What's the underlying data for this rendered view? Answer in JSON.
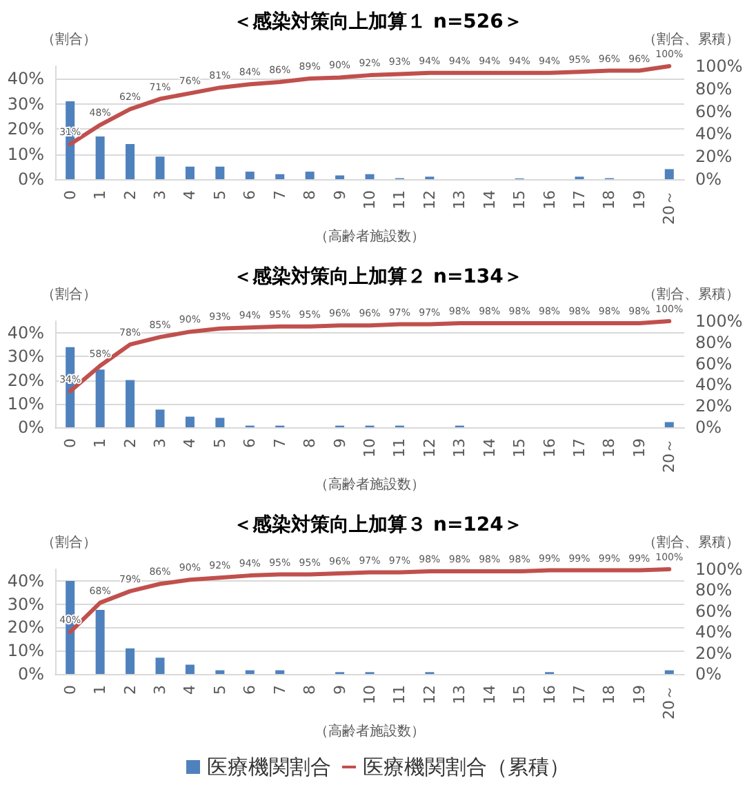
{
  "chart_data": [
    {
      "type": "bar",
      "title": "＜感染対策向上加算１ n=526＞",
      "xlabel": "（高齢者施設数）",
      "ylabel": "（割合）",
      "y2label": "（割合、累積）",
      "categories": [
        "0",
        "1",
        "2",
        "3",
        "4",
        "5",
        "6",
        "7",
        "8",
        "9",
        "10",
        "11",
        "12",
        "13",
        "14",
        "15",
        "16",
        "17",
        "18",
        "19",
        "20～"
      ],
      "series": [
        {
          "color": "#4f81bd",
          "values": [
            31,
            17,
            14,
            9,
            5,
            5,
            3,
            2,
            3,
            1.5,
            2,
            0.4,
            1,
            0,
            0,
            0.3,
            0,
            1,
            0.4,
            0,
            4
          ]
        },
        {
          "type": "line",
          "axis": "y2",
          "color": "#c0504d",
          "values": [
            31,
            48,
            62,
            71,
            76,
            81,
            84,
            86,
            89,
            90,
            92,
            93,
            94,
            94,
            94,
            94,
            94,
            95,
            96,
            96,
            100
          ],
          "value_labels": [
            "31%",
            "48%",
            "62%",
            "71%",
            "76%",
            "81%",
            "84%",
            "86%",
            "89%",
            "90%",
            "92%",
            "93%",
            "94%",
            "94%",
            "94%",
            "94%",
            "94%",
            "95%",
            "96%",
            "96%",
            "100%"
          ]
        }
      ],
      "ylim": [
        0,
        45
      ],
      "yticks": [
        {
          "value": 0,
          "label": "0%"
        },
        {
          "value": 10,
          "label": "10%"
        },
        {
          "value": 20,
          "label": "20%"
        },
        {
          "value": 30,
          "label": "30%"
        },
        {
          "value": 40,
          "label": "40%"
        }
      ],
      "y2lim": [
        0,
        100
      ],
      "y2ticks": [
        {
          "value": 0,
          "label": "0%"
        },
        {
          "value": 20,
          "label": "20%"
        },
        {
          "value": 40,
          "label": "40%"
        },
        {
          "value": 60,
          "label": "60%"
        },
        {
          "value": 80,
          "label": "80%"
        },
        {
          "value": 100,
          "label": "100%"
        }
      ],
      "grid": "y",
      "legend": false,
      "marker": "none",
      "line_style": "solid"
    },
    {
      "type": "bar",
      "title": "＜感染対策向上加算２ n=134＞",
      "xlabel": "（高齢者施設数）",
      "ylabel": "（割合）",
      "y2label": "（割合、累積）",
      "categories": [
        "0",
        "1",
        "2",
        "3",
        "4",
        "5",
        "6",
        "7",
        "8",
        "9",
        "10",
        "11",
        "12",
        "13",
        "14",
        "15",
        "16",
        "17",
        "18",
        "19",
        "20～"
      ],
      "series": [
        {
          "color": "#4f81bd",
          "values": [
            34,
            24.5,
            20,
            7.5,
            4.5,
            4,
            0.7,
            0.7,
            0,
            0.7,
            0.7,
            0.7,
            0,
            0.7,
            0,
            0,
            0,
            0,
            0,
            0,
            2.2
          ]
        },
        {
          "type": "line",
          "axis": "y2",
          "color": "#c0504d",
          "values": [
            34,
            58,
            78,
            85,
            90,
            93,
            94,
            95,
            95,
            96,
            96,
            97,
            97,
            98,
            98,
            98,
            98,
            98,
            98,
            98,
            100
          ],
          "value_labels": [
            "34%",
            "58%",
            "78%",
            "85%",
            "90%",
            "93%",
            "94%",
            "95%",
            "95%",
            "96%",
            "96%",
            "97%",
            "97%",
            "98%",
            "98%",
            "98%",
            "98%",
            "98%",
            "98%",
            "98%",
            "100%"
          ]
        }
      ],
      "ylim": [
        0,
        45
      ],
      "yticks": [
        {
          "value": 0,
          "label": "0%"
        },
        {
          "value": 10,
          "label": "10%"
        },
        {
          "value": 20,
          "label": "20%"
        },
        {
          "value": 30,
          "label": "30%"
        },
        {
          "value": 40,
          "label": "40%"
        }
      ],
      "y2lim": [
        0,
        100
      ],
      "y2ticks": [
        {
          "value": 0,
          "label": "0%"
        },
        {
          "value": 20,
          "label": "20%"
        },
        {
          "value": 40,
          "label": "40%"
        },
        {
          "value": 60,
          "label": "60%"
        },
        {
          "value": 80,
          "label": "80%"
        },
        {
          "value": 100,
          "label": "100%"
        }
      ],
      "grid": "y",
      "legend": false,
      "marker": "none",
      "line_style": "solid"
    },
    {
      "type": "bar",
      "title": "＜感染対策向上加算３ n=124＞",
      "xlabel": "（高齢者施設数）",
      "ylabel": "（割合）",
      "y2label": "（割合、累積）",
      "categories": [
        "0",
        "1",
        "2",
        "3",
        "4",
        "5",
        "6",
        "7",
        "8",
        "9",
        "10",
        "11",
        "12",
        "13",
        "14",
        "15",
        "16",
        "17",
        "18",
        "19",
        "20～"
      ],
      "series": [
        {
          "name": "医療機関割合",
          "color": "#4f81bd",
          "values": [
            40,
            27.5,
            11,
            7,
            4,
            1.6,
            1.6,
            1.6,
            0,
            0.8,
            0.8,
            0,
            0.8,
            0,
            0,
            0,
            0.8,
            0,
            0,
            0,
            1.6
          ]
        },
        {
          "type": "line",
          "axis": "y2",
          "name": "医療機関割合（累積）",
          "color": "#c0504d",
          "values": [
            40,
            68,
            79,
            86,
            90,
            92,
            94,
            95,
            95,
            96,
            97,
            97,
            98,
            98,
            98,
            98,
            99,
            99,
            99,
            99,
            100
          ],
          "value_labels": [
            "40%",
            "68%",
            "79%",
            "86%",
            "90%",
            "92%",
            "94%",
            "95%",
            "95%",
            "96%",
            "97%",
            "97%",
            "98%",
            "98%",
            "98%",
            "98%",
            "99%",
            "99%",
            "99%",
            "99%",
            "100%"
          ]
        }
      ],
      "ylim": [
        0,
        45
      ],
      "yticks": [
        {
          "value": 0,
          "label": "0%"
        },
        {
          "value": 10,
          "label": "10%"
        },
        {
          "value": 20,
          "label": "20%"
        },
        {
          "value": 30,
          "label": "30%"
        },
        {
          "value": 40,
          "label": "40%"
        }
      ],
      "y2lim": [
        0,
        100
      ],
      "y2ticks": [
        {
          "value": 0,
          "label": "0%"
        },
        {
          "value": 20,
          "label": "20%"
        },
        {
          "value": 40,
          "label": "40%"
        },
        {
          "value": 60,
          "label": "60%"
        },
        {
          "value": 80,
          "label": "80%"
        },
        {
          "value": 100,
          "label": "100%"
        }
      ],
      "grid": "y",
      "legend": "bottom",
      "marker": "none",
      "line_style": "solid"
    }
  ]
}
